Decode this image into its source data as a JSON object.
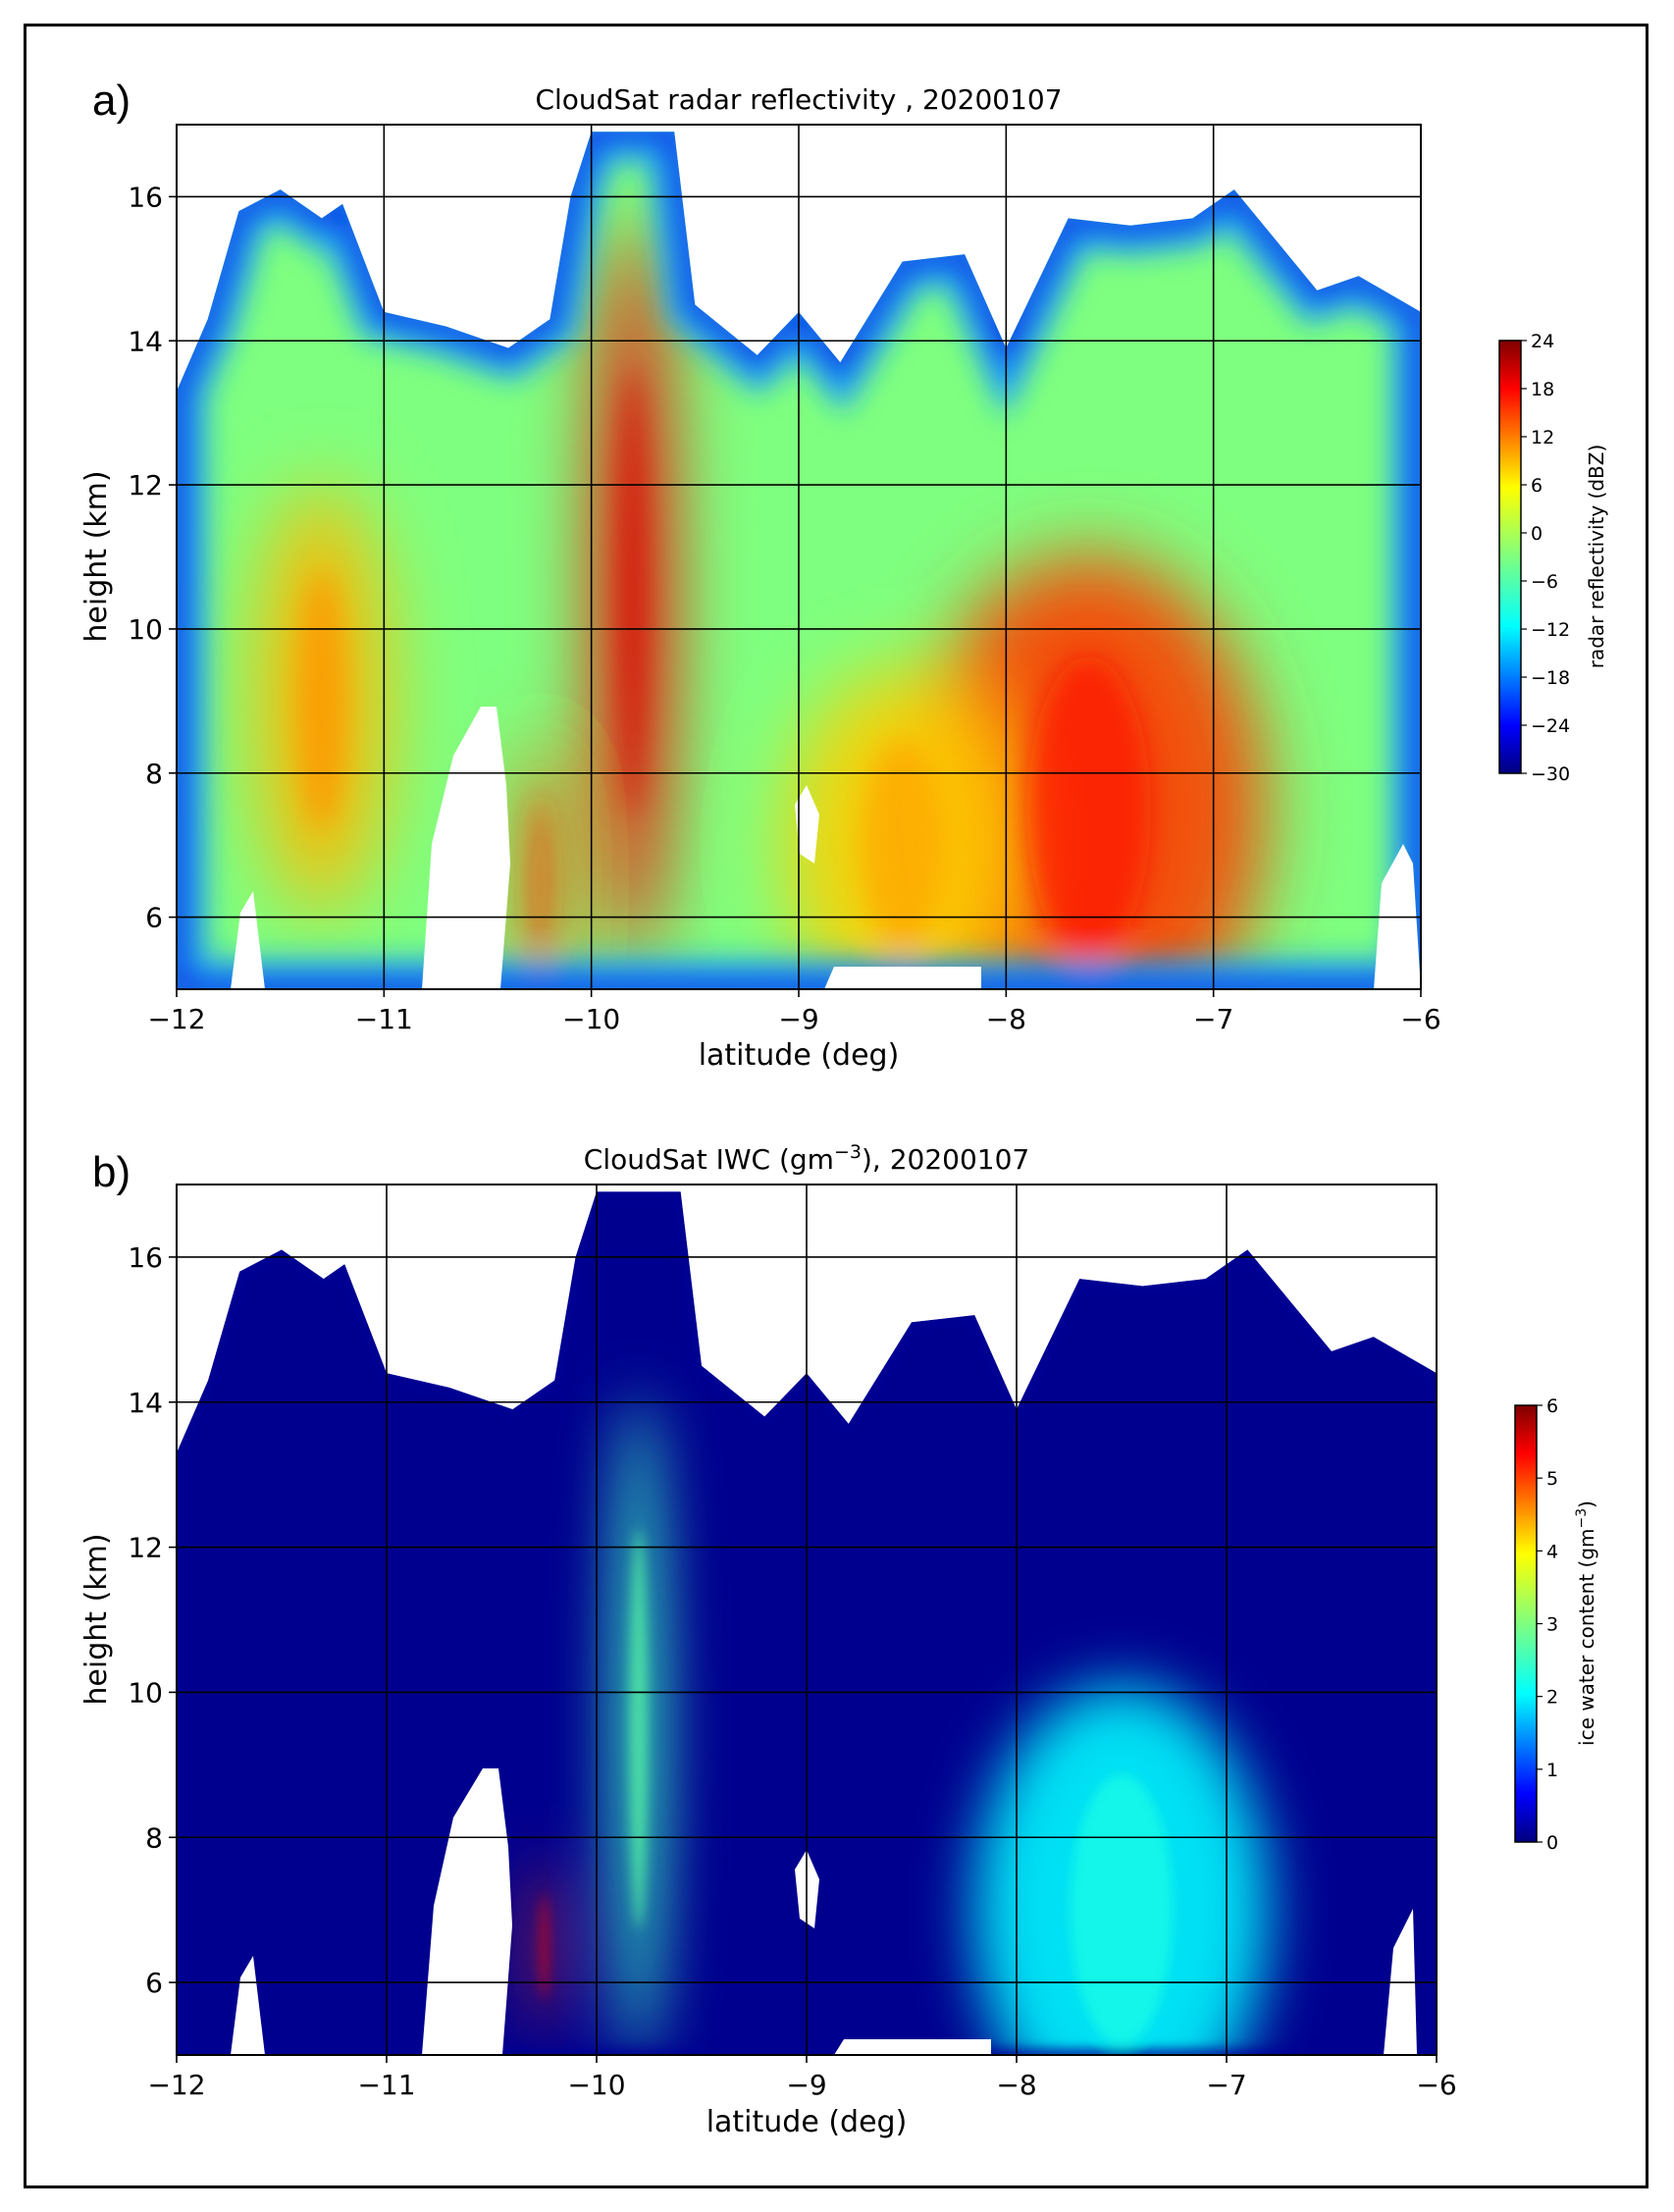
{
  "panels": [
    {
      "letter": "a)",
      "title": "CloudSat radar reflectivity , 20200107",
      "xlabel": "latitude (deg)",
      "ylabel": "height (km)",
      "colorbar_label": "radar reflectivity (dBZ)",
      "x_ticks": [
        "−12",
        "−11",
        "−10",
        "−9",
        "−8",
        "−7",
        "−6"
      ],
      "y_ticks": [
        "6",
        "8",
        "10",
        "12",
        "14",
        "16"
      ],
      "cbar_ticks": [
        "24",
        "18",
        "12",
        "6",
        "0",
        "−6",
        "−12",
        "−18",
        "−24",
        "−30"
      ]
    },
    {
      "letter": "b)",
      "title_prefix": "CloudSat IWC (gm",
      "title_sup": "−3",
      "title_suffix": "), 20200107",
      "xlabel": "latitude (deg)",
      "ylabel": "height (km)",
      "colorbar_label_prefix": "ice water content (gm",
      "colorbar_label_sup": "−3",
      "colorbar_label_suffix": ")",
      "x_ticks": [
        "−12",
        "−11",
        "−10",
        "−9",
        "−8",
        "−7",
        "−6"
      ],
      "y_ticks": [
        "6",
        "8",
        "10",
        "12",
        "14",
        "16"
      ],
      "cbar_ticks": [
        "6",
        "5",
        "4",
        "3",
        "2",
        "1",
        "0"
      ]
    }
  ],
  "chart_data": [
    {
      "type": "heatmap",
      "title": "CloudSat radar reflectivity , 20200107",
      "xlabel": "latitude (deg)",
      "ylabel": "height (km)",
      "xlim": [
        -12,
        -6
      ],
      "ylim": [
        5,
        17
      ],
      "grid": true,
      "colorbar": {
        "label": "radar reflectivity (dBZ)",
        "range": [
          -30,
          24
        ],
        "ticks": [
          -30,
          -24,
          -18,
          -12,
          -6,
          0,
          6,
          12,
          18,
          24
        ],
        "placement": "right"
      },
      "cloud_top_km": [
        [
          -12.0,
          13.3
        ],
        [
          -11.85,
          14.3
        ],
        [
          -11.7,
          15.8
        ],
        [
          -11.5,
          16.1
        ],
        [
          -11.3,
          15.7
        ],
        [
          -11.2,
          15.9
        ],
        [
          -11.0,
          14.4
        ],
        [
          -10.7,
          14.2
        ],
        [
          -10.4,
          13.9
        ],
        [
          -10.2,
          14.3
        ],
        [
          -10.1,
          16.0
        ],
        [
          -10.0,
          16.9
        ],
        [
          -9.6,
          16.9
        ],
        [
          -9.5,
          14.5
        ],
        [
          -9.2,
          13.8
        ],
        [
          -9.0,
          14.4
        ],
        [
          -8.8,
          13.7
        ],
        [
          -8.5,
          15.1
        ],
        [
          -8.2,
          15.2
        ],
        [
          -8.0,
          13.9
        ],
        [
          -7.7,
          15.7
        ],
        [
          -7.4,
          15.6
        ],
        [
          -7.1,
          15.7
        ],
        [
          -6.9,
          16.1
        ],
        [
          -6.7,
          15.4
        ],
        [
          -6.5,
          14.7
        ],
        [
          -6.3,
          14.9
        ],
        [
          -6.0,
          14.4
        ]
      ],
      "cores": [
        {
          "lat": -9.8,
          "height_km": 10.5,
          "dbz": 18
        },
        {
          "lat": -7.6,
          "height_km": 7.5,
          "dbz": 15
        },
        {
          "lat": -11.3,
          "height_km": 9.0,
          "dbz": 9
        },
        {
          "lat": -10.25,
          "height_km": 6.5,
          "dbz": 14
        },
        {
          "lat": -8.5,
          "height_km": 7.0,
          "dbz": 8
        }
      ]
    },
    {
      "type": "heatmap",
      "title": "CloudSat IWC (gm−3), 20200107",
      "xlabel": "latitude (deg)",
      "ylabel": "height (km)",
      "xlim": [
        -12,
        -6
      ],
      "ylim": [
        5,
        17
      ],
      "grid": true,
      "colorbar": {
        "label": "ice water content (gm−3)",
        "range": [
          0,
          6
        ],
        "ticks": [
          0,
          1,
          2,
          3,
          4,
          5,
          6
        ],
        "placement": "right"
      },
      "cloud_top_km": [
        [
          -12.0,
          13.3
        ],
        [
          -11.85,
          14.3
        ],
        [
          -11.7,
          15.8
        ],
        [
          -11.5,
          16.1
        ],
        [
          -11.3,
          15.7
        ],
        [
          -11.2,
          15.9
        ],
        [
          -11.0,
          14.4
        ],
        [
          -10.7,
          14.2
        ],
        [
          -10.4,
          13.9
        ],
        [
          -10.2,
          14.3
        ],
        [
          -10.1,
          16.0
        ],
        [
          -10.0,
          16.9
        ],
        [
          -9.6,
          16.9
        ],
        [
          -9.5,
          14.5
        ],
        [
          -9.2,
          13.8
        ],
        [
          -9.0,
          14.4
        ],
        [
          -8.8,
          13.7
        ],
        [
          -8.5,
          15.1
        ],
        [
          -8.2,
          15.2
        ],
        [
          -8.0,
          13.9
        ],
        [
          -7.7,
          15.7
        ],
        [
          -7.4,
          15.6
        ],
        [
          -7.1,
          15.7
        ],
        [
          -6.9,
          16.1
        ],
        [
          -6.7,
          15.4
        ],
        [
          -6.5,
          14.7
        ],
        [
          -6.3,
          14.9
        ],
        [
          -6.0,
          14.4
        ]
      ],
      "cores": [
        {
          "lat": -9.8,
          "height_km": 9.5,
          "iwc": 2.5
        },
        {
          "lat": -7.5,
          "height_km": 7.0,
          "iwc": 2.0
        },
        {
          "lat": -10.25,
          "height_km": 6.5,
          "iwc": 5.0
        }
      ]
    }
  ],
  "colors": {
    "jet": [
      "#00007f",
      "#0000ff",
      "#007fff",
      "#00ffff",
      "#7fff7f",
      "#ffff00",
      "#ff7f00",
      "#ff0000",
      "#7f0000"
    ],
    "grid": "#000000",
    "frame": "#000000"
  }
}
